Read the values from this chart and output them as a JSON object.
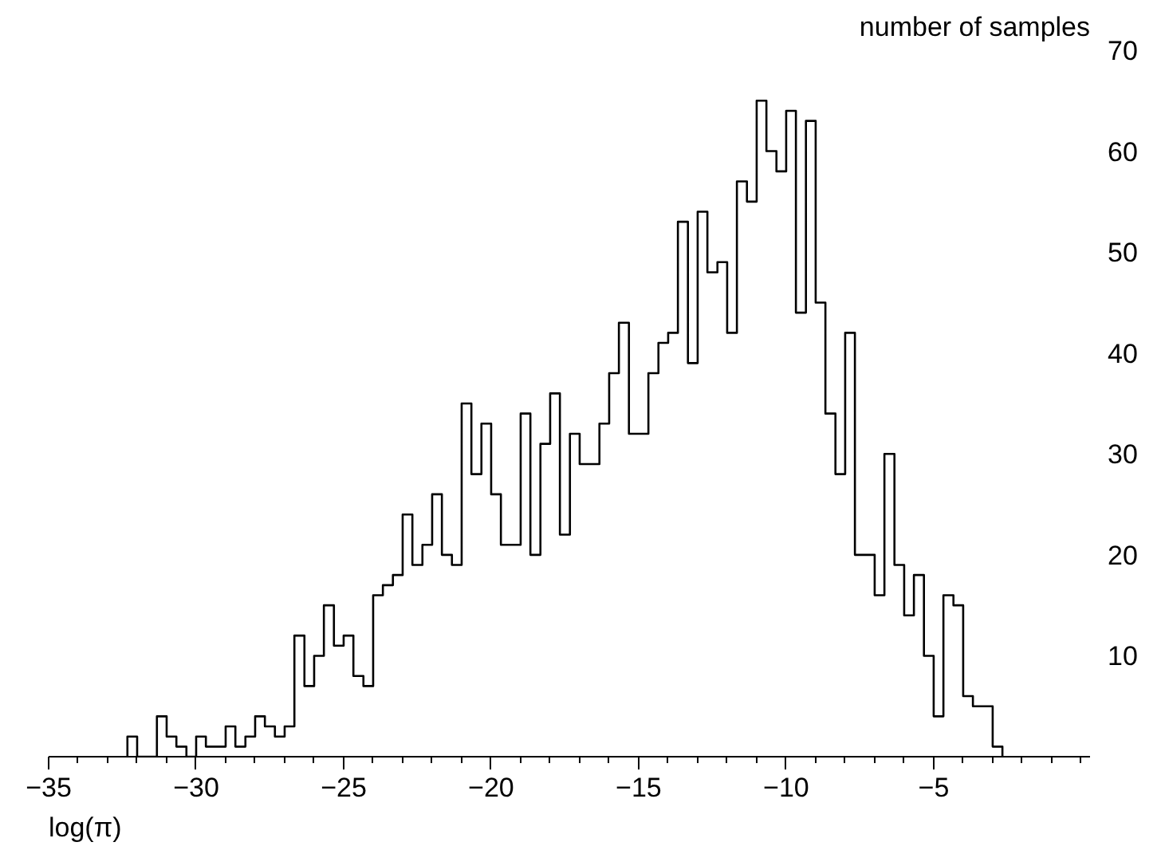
{
  "chart_data": {
    "type": "histogram",
    "xlabel": "log(π)",
    "ylabel": "number of samples",
    "bins": [
      -32.33,
      -32,
      -31.67,
      -31.33,
      -31,
      -30.67,
      -30.33,
      -30,
      -29.67,
      -29.33,
      -29,
      -28.67,
      -28.33,
      -28,
      -27.67,
      -27.33,
      -27,
      -26.67,
      -26.33,
      -26,
      -25.67,
      -25.33,
      -25,
      -24.67,
      -24.33,
      -24,
      -23.67,
      -23.33,
      -23,
      -22.67,
      -22.33,
      -22,
      -21.67,
      -21.33,
      -21,
      -20.67,
      -20.33,
      -20,
      -19.67,
      -19.33,
      -19,
      -18.67,
      -18.33,
      -18,
      -17.67,
      -17.33,
      -17,
      -16.67,
      -16.33,
      -16,
      -15.67,
      -15.33,
      -15,
      -14.67,
      -14.33,
      -14,
      -13.67,
      -13.33,
      -13,
      -12.67,
      -12.33,
      -12,
      -11.67,
      -11.33,
      -11,
      -10.67,
      -10.33,
      -10,
      -9.67,
      -9.33,
      -9,
      -8.67,
      -8.33,
      -8,
      -7.67,
      -7.33,
      -7,
      -6.67,
      -6.33,
      -6,
      -5.67,
      -5.33,
      -5,
      -4.67,
      -4.33,
      -4,
      -3.67,
      -3.33,
      -3,
      -2.67
    ],
    "values": [
      2,
      0,
      0,
      4,
      2,
      1,
      0,
      2,
      1,
      1,
      3,
      1,
      2,
      4,
      3,
      2,
      3,
      12,
      7,
      10,
      15,
      11,
      12,
      8,
      7,
      16,
      17,
      18,
      24,
      19,
      21,
      26,
      20,
      19,
      35,
      28,
      33,
      26,
      21,
      21,
      34,
      20,
      31,
      36,
      22,
      32,
      29,
      29,
      33,
      38,
      43,
      32,
      32,
      38,
      41,
      42,
      53,
      39,
      54,
      48,
      49,
      42,
      57,
      55,
      65,
      60,
      58,
      64,
      44,
      63,
      45,
      34,
      28,
      42,
      20,
      20,
      16,
      30,
      19,
      14,
      18,
      10,
      4,
      16,
      15,
      6,
      5,
      5,
      1
    ],
    "color": "#000000",
    "xlim": [
      -35,
      0.3
    ],
    "ylim": [
      0,
      70
    ],
    "xticks": [
      -35,
      -30,
      -25,
      -20,
      -15,
      -10,
      -5
    ],
    "yticks": [
      10,
      20,
      30,
      40,
      50,
      60,
      70
    ],
    "grid": false
  }
}
